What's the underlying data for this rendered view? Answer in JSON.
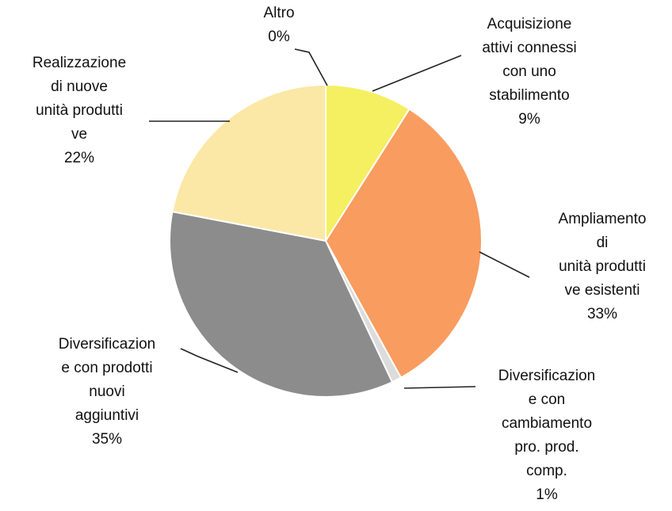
{
  "chart_data": {
    "type": "pie",
    "categories": [
      "Altro",
      "Acquisizione\nattivi connessi\ncon uno\nstabilimento",
      "Ampliamento\ndi\nunità  produtti\nve esistenti",
      "Diversificazion\ne con\ncambiamento\npro. prod.\ncomp.",
      "Diversificazion\ne con prodotti\nnuovi\naggiuntivi",
      "Realizzazione\ndi nuove\nunità  produtti\nve"
    ],
    "values": [
      0,
      9,
      33,
      1,
      35,
      22
    ],
    "value_labels": [
      "0%",
      "9%",
      "33%",
      "1%",
      "35%",
      "22%"
    ],
    "colors": [
      "#b0a080",
      "#f5ef62",
      "#f99c60",
      "#dcdcdc",
      "#8c8c8c",
      "#fbe8a6"
    ]
  }
}
